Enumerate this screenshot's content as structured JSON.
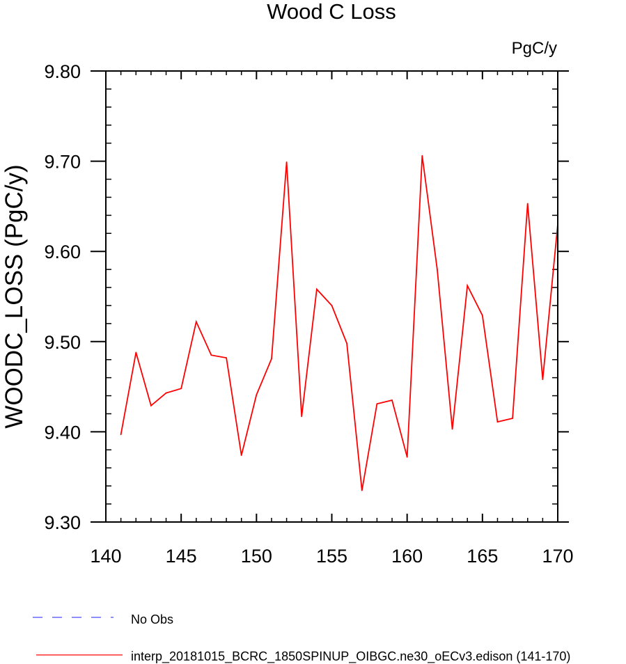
{
  "chart_data": {
    "type": "line",
    "title": "Wood C Loss",
    "units_label": "PgC/y",
    "xlabel": "",
    "ylabel": "WOODC_LOSS  (PgC/y)",
    "xlim": [
      140,
      170
    ],
    "ylim": [
      9.3,
      9.8
    ],
    "x_ticks": [
      140,
      145,
      150,
      155,
      160,
      165,
      170
    ],
    "x_tick_labels": [
      "140",
      "145",
      "150",
      "155",
      "160",
      "165",
      "170"
    ],
    "y_ticks": [
      9.3,
      9.4,
      9.5,
      9.6,
      9.7,
      9.8
    ],
    "y_tick_labels": [
      "9.30",
      "9.40",
      "9.50",
      "9.60",
      "9.70",
      "9.80"
    ],
    "series": [
      {
        "name": "interp_20181015_BCRC_1850SPINUP_OIBGC.ne30_oECv3.edison (141-170)",
        "color": "#ff0000",
        "style": "solid",
        "x": [
          141,
          142,
          143,
          144,
          145,
          146,
          147,
          148,
          149,
          150,
          151,
          152,
          153,
          154,
          155,
          156,
          157,
          158,
          159,
          160,
          161,
          162,
          163,
          164,
          165,
          166,
          167,
          168,
          169,
          170
        ],
        "values": [
          9.397,
          9.488,
          9.429,
          9.443,
          9.448,
          9.522,
          9.485,
          9.482,
          9.374,
          9.441,
          9.481,
          9.699,
          9.417,
          9.558,
          9.54,
          9.498,
          9.335,
          9.431,
          9.435,
          9.372,
          9.706,
          9.58,
          9.403,
          9.562,
          9.529,
          9.411,
          9.415,
          9.653,
          9.458,
          9.63
        ]
      }
    ],
    "legend": [
      {
        "label": "No Obs",
        "color": "#4a4aff",
        "style": "dashed"
      },
      {
        "label": "interp_20181015_BCRC_1850SPINUP_OIBGC.ne30_oECv3.edison (141-170)",
        "color": "#ff0000",
        "style": "solid"
      }
    ],
    "legend_position": "bottom-left"
  }
}
